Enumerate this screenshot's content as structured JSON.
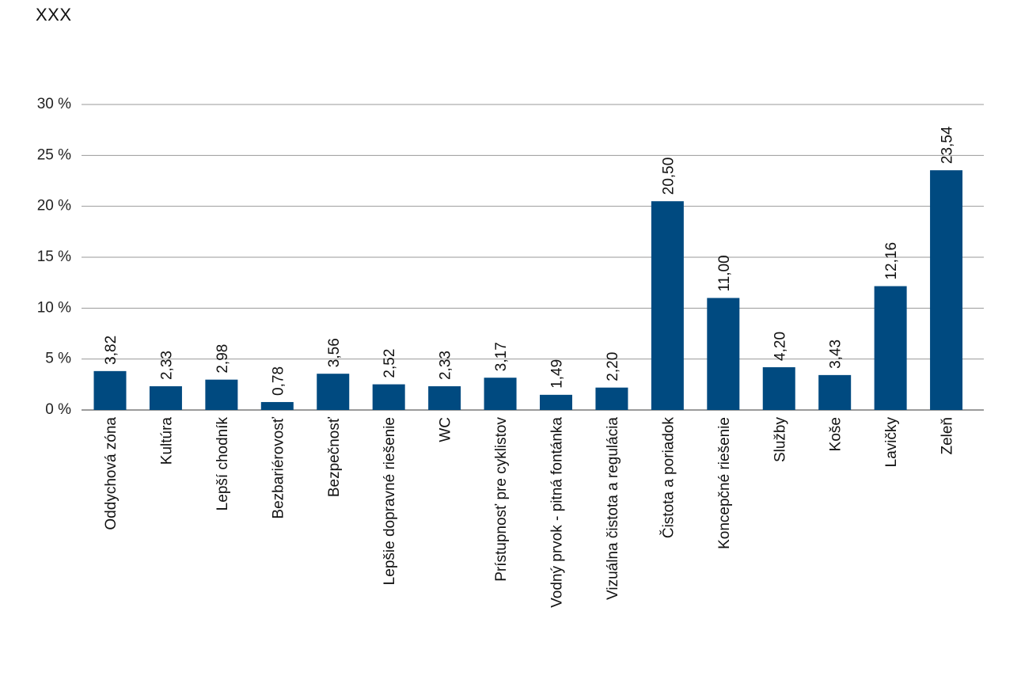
{
  "header": {
    "title": "XXX"
  },
  "chart_data": {
    "type": "bar",
    "title": "XXX",
    "xlabel": "",
    "ylabel": "",
    "ylim": [
      0,
      30
    ],
    "yticks": [
      "0 %",
      "5 %",
      "10 %",
      "15 %",
      "20 %",
      "25 %",
      "30 %"
    ],
    "grid": "horizontal",
    "legend": "none",
    "bar_color": "#004a80",
    "categories": [
      "Oddychová zóna",
      "Kultúra",
      "Lepší chodník",
      "Bezbariérovosť",
      "Bezpečnosť",
      "Lepšie dopravné riešenie",
      "WC",
      "Prístupnosť pre cyklistov",
      "Vodný prvok - pitná fontánka",
      "Vizuálna čistota a regulácia",
      "Čistota a poriadok",
      "Koncepčné riešenie",
      "Služby",
      "Koše",
      "Lavičky",
      "Zeleň"
    ],
    "values": [
      3.82,
      2.33,
      2.98,
      0.78,
      3.56,
      2.52,
      2.33,
      3.17,
      1.49,
      2.2,
      20.5,
      11.0,
      4.2,
      3.43,
      12.16,
      23.54
    ],
    "data_labels": [
      "3,82",
      "2,33",
      "2,98",
      "0,78",
      "3,56",
      "2,52",
      "2,33",
      "3,17",
      "1,49",
      "2,20",
      "20,50",
      "11,00",
      "4,20",
      "3,43",
      "12,16",
      "23,54"
    ]
  }
}
